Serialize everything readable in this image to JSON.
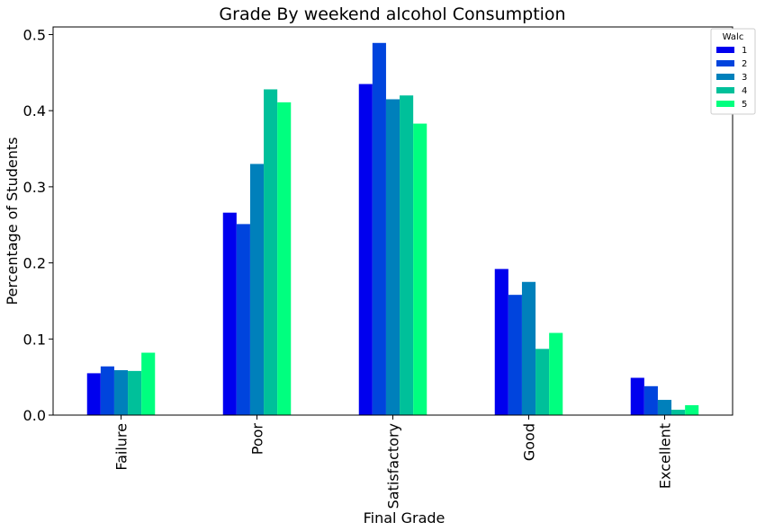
{
  "chart_data": {
    "type": "bar",
    "title": "Grade By weekend alcohol Consumption",
    "xlabel": "Final Grade",
    "ylabel": "Percentage of Students",
    "categories": [
      "Failure",
      "Poor",
      "Satisfactory",
      "Good",
      "Excellent"
    ],
    "ylim": [
      0,
      0.51
    ],
    "yticks": [
      "0.0",
      "0.1",
      "0.2",
      "0.3",
      "0.4",
      "0.5"
    ],
    "legend_title": "Walc",
    "legend_position": "top-right",
    "grid": false,
    "series": [
      {
        "name": "1",
        "color": "#0000ee",
        "values": [
          0.055,
          0.266,
          0.435,
          0.192,
          0.049
        ]
      },
      {
        "name": "2",
        "color": "#0044dd",
        "values": [
          0.064,
          0.251,
          0.489,
          0.158,
          0.038
        ]
      },
      {
        "name": "3",
        "color": "#0080bb",
        "values": [
          0.059,
          0.33,
          0.415,
          0.175,
          0.02
        ]
      },
      {
        "name": "4",
        "color": "#00c09a",
        "values": [
          0.058,
          0.428,
          0.42,
          0.087,
          0.007
        ]
      },
      {
        "name": "5",
        "color": "#00ff7f",
        "values": [
          0.082,
          0.411,
          0.383,
          0.108,
          0.013
        ]
      }
    ]
  }
}
